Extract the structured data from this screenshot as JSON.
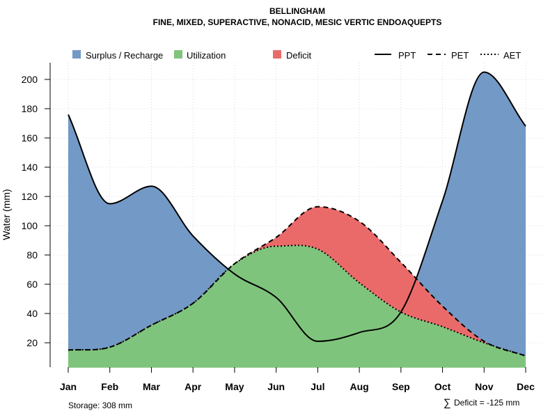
{
  "chart_data": {
    "type": "area",
    "title": "BELLINGHAM",
    "subtitle": "FINE, MIXED, SUPERACTIVE, NONACID, MESIC VERTIC ENDOAQUEPTS",
    "xlabel": "",
    "ylabel": "Water (mm)",
    "ylim": [
      3,
      211
    ],
    "yticks": [
      20,
      40,
      60,
      80,
      100,
      120,
      140,
      160,
      180,
      200
    ],
    "categories": [
      "Jan",
      "Feb",
      "Mar",
      "Apr",
      "May",
      "Jun",
      "Jul",
      "Aug",
      "Sep",
      "Oct",
      "Nov",
      "Dec"
    ],
    "series": [
      {
        "name": "PPT",
        "style": "solid",
        "values": [
          176,
          115,
          127,
          93,
          67,
          51,
          21,
          27,
          41,
          117,
          205,
          168
        ]
      },
      {
        "name": "PET",
        "style": "dashed",
        "values": [
          15,
          17,
          32,
          47,
          74,
          92,
          113,
          103,
          75,
          45,
          21,
          11
        ]
      },
      {
        "name": "AET",
        "style": "dotted",
        "values": [
          15,
          17,
          32,
          47,
          74,
          86,
          84,
          61,
          41,
          31,
          20,
          11
        ]
      }
    ],
    "legend": {
      "position": "top",
      "fills": [
        {
          "label": "Surplus / Recharge",
          "color": "#7399c6"
        },
        {
          "label": "Utilization",
          "color": "#7fc47c"
        },
        {
          "label": "Deficit",
          "color": "#ea6a6a"
        }
      ],
      "lines": [
        {
          "label": "PPT",
          "style": "solid"
        },
        {
          "label": "PET",
          "style": "dashed"
        },
        {
          "label": "AET",
          "style": "dotted"
        }
      ]
    },
    "storage_label": "Storage: 308 mm",
    "deficit_label": "Deficit = -125 mm",
    "sum_symbol": "∑",
    "grid": true
  }
}
